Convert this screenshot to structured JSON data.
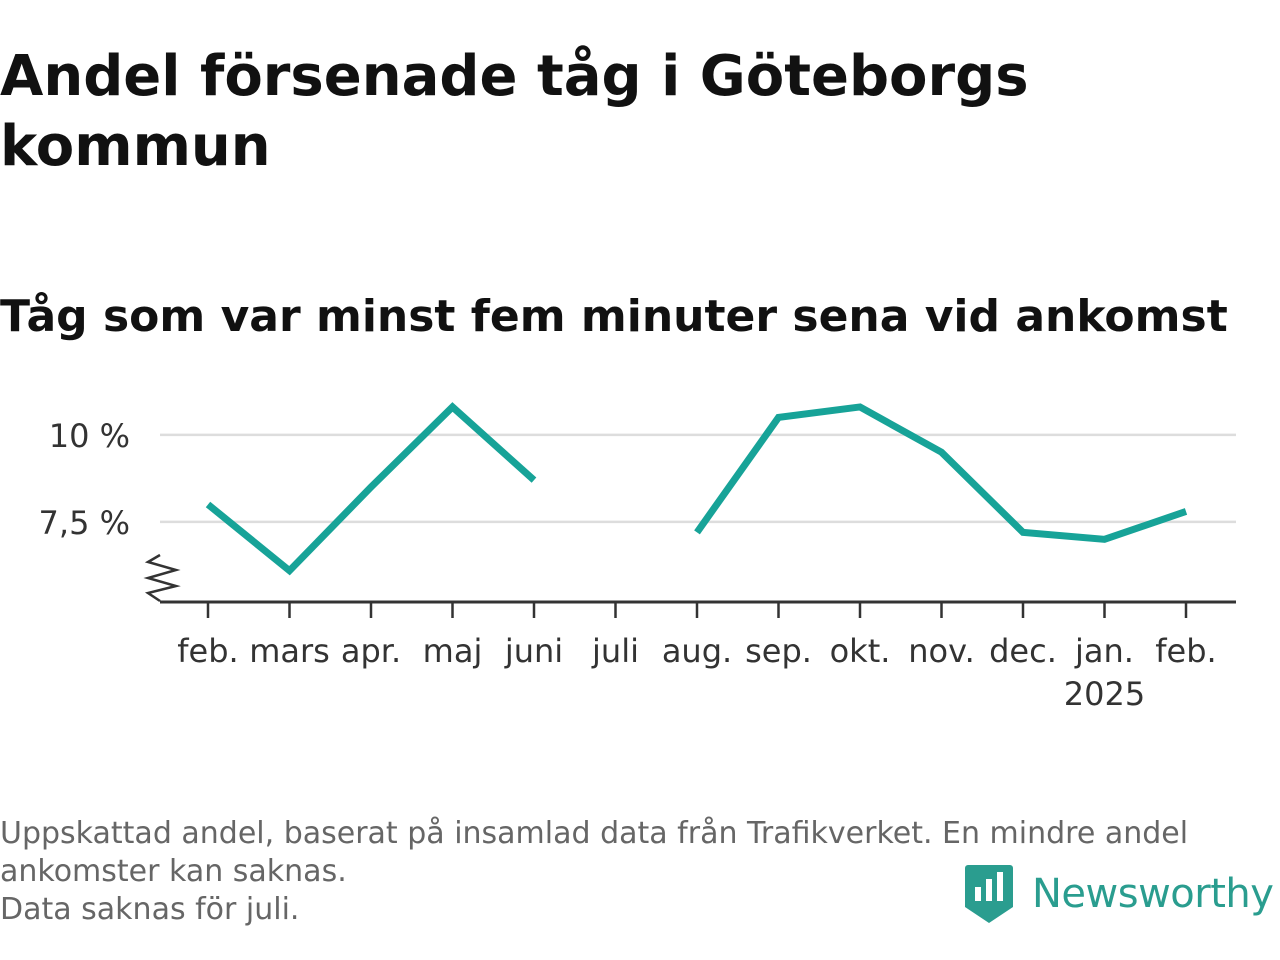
{
  "title": "Andel försenade tåg i Göteborgs kommun",
  "subtitle": "Tåg som var minst fem minuter sena vid ankomst",
  "footnote": {
    "line1": "Uppskattad andel, baserat på insamlad data från Trafikverket. En mindre andel ankomster kan saknas.",
    "line2": "Data saknas för juli."
  },
  "brand": {
    "name": "Newsworthy",
    "color": "#2a9d8f",
    "icon": "newsworthy-logo-icon"
  },
  "chart_data": {
    "type": "line",
    "categories": [
      "feb.",
      "mars",
      "apr.",
      "maj",
      "juni",
      "juli",
      "aug.",
      "sep.",
      "okt.",
      "nov.",
      "dec.",
      "jan.",
      "feb."
    ],
    "year_labels": [
      {
        "index": 11,
        "label": "2025"
      }
    ],
    "values": [
      8.0,
      6.1,
      8.5,
      10.8,
      8.7,
      null,
      7.2,
      10.5,
      10.8,
      9.5,
      7.2,
      7.0,
      7.8
    ],
    "y_ticks": [
      {
        "value": 7.5,
        "label": "7,5 %"
      },
      {
        "value": 10,
        "label": "10 %"
      }
    ],
    "ylim": [
      5.2,
      11.0
    ],
    "axis_break": true,
    "line_color": "#17a398",
    "grid": "horizontal",
    "gridline_color": "#dddddd",
    "missing": [
      "juli"
    ]
  }
}
